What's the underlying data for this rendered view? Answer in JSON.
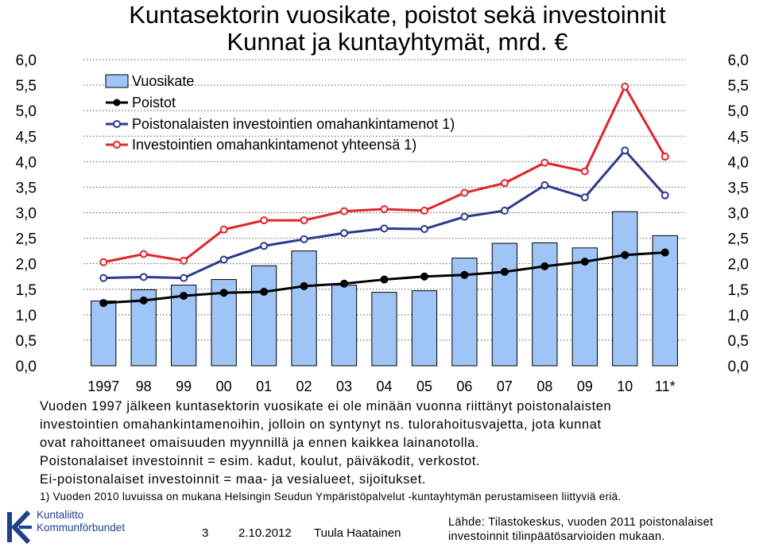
{
  "title_line1": "Kuntasektorin vuosikate, poistot sekä investoinnit",
  "title_line2": "Kunnat ja kuntayhtymät, mrd. €",
  "chart_data": {
    "type": "bar+line",
    "categories": [
      "1997",
      "98",
      "99",
      "00",
      "01",
      "02",
      "03",
      "04",
      "05",
      "06",
      "07",
      "08",
      "09",
      "10",
      "11*"
    ],
    "ylim": [
      0,
      6
    ],
    "yticks": [
      "0,0",
      "0,5",
      "1,0",
      "1,5",
      "2,0",
      "2,5",
      "3,0",
      "3,5",
      "4,0",
      "4,5",
      "5,0",
      "5,5",
      "6,0"
    ],
    "grid": "horizontal dotted",
    "legend_position": "top-left",
    "series": [
      {
        "name": "Vuosikate",
        "kind": "bar",
        "color": "#9ec5f5",
        "values": [
          1.27,
          1.49,
          1.58,
          1.69,
          1.96,
          2.25,
          1.58,
          1.44,
          1.47,
          2.11,
          2.4,
          2.41,
          2.31,
          3.02,
          2.55
        ]
      },
      {
        "name": "Poistot",
        "kind": "line",
        "color": "#000000",
        "marker": "filled",
        "values": [
          1.23,
          1.28,
          1.37,
          1.43,
          1.45,
          1.56,
          1.61,
          1.69,
          1.75,
          1.78,
          1.84,
          1.95,
          2.04,
          2.17,
          2.22
        ]
      },
      {
        "name": "Poistonalaisten investointien omahankintamenot 1)",
        "kind": "line",
        "color": "#2c3a8c",
        "marker": "open",
        "values": [
          1.72,
          1.74,
          1.72,
          2.08,
          2.35,
          2.48,
          2.6,
          2.69,
          2.68,
          2.92,
          3.04,
          3.54,
          3.3,
          4.22,
          3.34
        ]
      },
      {
        "name": "Investointien omahankintamenot yhteensä 1)",
        "kind": "line",
        "color": "#e0242a",
        "marker": "open",
        "values": [
          2.03,
          2.19,
          2.06,
          2.67,
          2.85,
          2.85,
          3.03,
          3.07,
          3.04,
          3.39,
          3.58,
          3.98,
          3.81,
          5.47,
          4.1
        ]
      }
    ]
  },
  "notes": [
    "Vuoden 1997 jälkeen kuntasektorin vuosikate ei ole minään vuonna riittänyt poistonalaisten",
    "investointien omahankintamenoihin, jolloin on syntynyt ns. tulorahoitusvajetta, jota kunnat",
    "ovat rahoittaneet omaisuuden myynnillä ja ennen kaikkea lainanotolla.",
    "Poistonalaiset investoinnit = esim. kadut, koulut, päiväkodit, verkostot.",
    "Ei-poistonalaiset investoinnit = maa- ja vesialueet, sijoitukset."
  ],
  "footnote": "1) Vuoden 2010 luvuissa on mukana Helsingin Seudun Ympäristöpalvelut -kuntayhtymän perustamiseen liittyviä eriä.",
  "logo": {
    "line1": "Kuntaliitto",
    "line2": "Kommunförbundet"
  },
  "footer": {
    "page": "3",
    "date": "2.10.2012",
    "author": "Tuula Haatainen"
  },
  "source": "Lähde: Tilastokeskus, vuoden 2011 poistonalaiset investoinnit tilinpäätösarvioiden mukaan.",
  "colors": {
    "bar": "#9ec5f5",
    "poistot": "#000000",
    "poistonalaiset": "#2c3a8c",
    "yhteensa": "#e0242a",
    "logo": "#1f3f8f"
  }
}
